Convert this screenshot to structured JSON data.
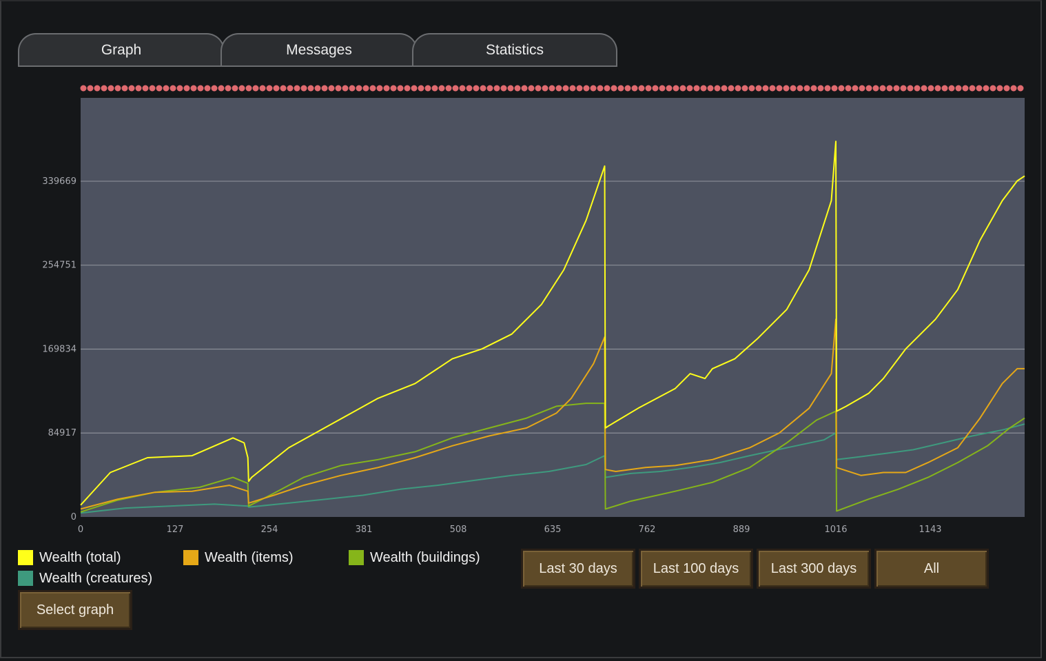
{
  "tabs": [
    {
      "label": "Graph",
      "active": true
    },
    {
      "label": "Messages",
      "active": false
    },
    {
      "label": "Statistics",
      "active": false
    }
  ],
  "legend": [
    {
      "label": "Wealth (total)",
      "color": "#ffff1a"
    },
    {
      "label": "Wealth (items)",
      "color": "#e6a817"
    },
    {
      "label": "Wealth (buildings)",
      "color": "#86b51a"
    },
    {
      "label": "Wealth (creatures)",
      "color": "#3e9a7e"
    }
  ],
  "buttons": {
    "select_graph": "Select graph",
    "last30": "Last 30 days",
    "last100": "Last 100 days",
    "last300": "Last 300 days",
    "all": "All"
  },
  "colors": {
    "plot_bg": "#4d5260",
    "gridline": "#8c8f98",
    "event_marker": "#e06a6f",
    "button_bg": "#5e4a28"
  },
  "chart_data": {
    "type": "line",
    "xlim": [
      0,
      1270
    ],
    "ylim": [
      0,
      424000
    ],
    "x_ticks": [
      0,
      127,
      254,
      381,
      508,
      635,
      762,
      889,
      1016,
      1143
    ],
    "y_ticks": [
      0,
      84917,
      169834,
      254751,
      339669
    ],
    "grid": true,
    "series": [
      {
        "name": "Wealth (total)",
        "color": "#ffff1a",
        "points": [
          [
            0,
            12000
          ],
          [
            40,
            45000
          ],
          [
            90,
            60000
          ],
          [
            150,
            62000
          ],
          [
            205,
            80000
          ],
          [
            220,
            75000
          ],
          [
            225,
            60000
          ],
          [
            226,
            36000
          ],
          [
            230,
            40000
          ],
          [
            280,
            70000
          ],
          [
            340,
            95000
          ],
          [
            400,
            120000
          ],
          [
            450,
            135000
          ],
          [
            500,
            160000
          ],
          [
            540,
            170000
          ],
          [
            580,
            185000
          ],
          [
            620,
            215000
          ],
          [
            650,
            250000
          ],
          [
            680,
            300000
          ],
          [
            705,
            355000
          ],
          [
            706,
            90000
          ],
          [
            710,
            92000
          ],
          [
            750,
            110000
          ],
          [
            800,
            130000
          ],
          [
            820,
            145000
          ],
          [
            840,
            140000
          ],
          [
            850,
            150000
          ],
          [
            880,
            160000
          ],
          [
            910,
            180000
          ],
          [
            950,
            210000
          ],
          [
            980,
            250000
          ],
          [
            1010,
            320000
          ],
          [
            1016,
            380000
          ],
          [
            1017,
            107000
          ],
          [
            1030,
            112000
          ],
          [
            1060,
            125000
          ],
          [
            1080,
            140000
          ],
          [
            1110,
            170000
          ],
          [
            1150,
            200000
          ],
          [
            1180,
            230000
          ],
          [
            1210,
            280000
          ],
          [
            1240,
            320000
          ],
          [
            1260,
            340000
          ],
          [
            1270,
            345000
          ]
        ]
      },
      {
        "name": "Wealth (items)",
        "color": "#e6a817",
        "points": [
          [
            0,
            8000
          ],
          [
            50,
            18000
          ],
          [
            100,
            25000
          ],
          [
            150,
            26000
          ],
          [
            200,
            32000
          ],
          [
            225,
            26000
          ],
          [
            226,
            14000
          ],
          [
            260,
            22000
          ],
          [
            300,
            32000
          ],
          [
            350,
            42000
          ],
          [
            400,
            50000
          ],
          [
            450,
            60000
          ],
          [
            500,
            72000
          ],
          [
            550,
            82000
          ],
          [
            600,
            90000
          ],
          [
            640,
            105000
          ],
          [
            660,
            120000
          ],
          [
            690,
            155000
          ],
          [
            705,
            182000
          ],
          [
            706,
            48000
          ],
          [
            720,
            46000
          ],
          [
            760,
            50000
          ],
          [
            800,
            52000
          ],
          [
            850,
            58000
          ],
          [
            900,
            70000
          ],
          [
            940,
            85000
          ],
          [
            980,
            110000
          ],
          [
            1010,
            145000
          ],
          [
            1016,
            200000
          ],
          [
            1017,
            50000
          ],
          [
            1050,
            42000
          ],
          [
            1080,
            45000
          ],
          [
            1110,
            45000
          ],
          [
            1140,
            55000
          ],
          [
            1180,
            70000
          ],
          [
            1210,
            100000
          ],
          [
            1240,
            135000
          ],
          [
            1260,
            150000
          ],
          [
            1270,
            150000
          ]
        ]
      },
      {
        "name": "Wealth (buildings)",
        "color": "#86b51a",
        "points": [
          [
            0,
            5000
          ],
          [
            50,
            17000
          ],
          [
            100,
            25000
          ],
          [
            160,
            30000
          ],
          [
            205,
            40000
          ],
          [
            225,
            34000
          ],
          [
            226,
            11000
          ],
          [
            260,
            24000
          ],
          [
            300,
            40000
          ],
          [
            350,
            52000
          ],
          [
            400,
            58000
          ],
          [
            450,
            66000
          ],
          [
            500,
            80000
          ],
          [
            550,
            90000
          ],
          [
            600,
            100000
          ],
          [
            640,
            112000
          ],
          [
            680,
            115000
          ],
          [
            705,
            115000
          ],
          [
            706,
            8000
          ],
          [
            740,
            16000
          ],
          [
            800,
            26000
          ],
          [
            850,
            35000
          ],
          [
            900,
            50000
          ],
          [
            950,
            75000
          ],
          [
            990,
            98000
          ],
          [
            1016,
            107000
          ],
          [
            1017,
            6000
          ],
          [
            1060,
            18000
          ],
          [
            1100,
            28000
          ],
          [
            1140,
            40000
          ],
          [
            1180,
            55000
          ],
          [
            1220,
            72000
          ],
          [
            1250,
            90000
          ],
          [
            1270,
            100000
          ]
        ]
      },
      {
        "name": "Wealth (creatures)",
        "color": "#3e9a7e",
        "points": [
          [
            0,
            4000
          ],
          [
            60,
            9000
          ],
          [
            120,
            11000
          ],
          [
            180,
            13000
          ],
          [
            225,
            11000
          ],
          [
            226,
            10000
          ],
          [
            280,
            14000
          ],
          [
            330,
            18000
          ],
          [
            380,
            22000
          ],
          [
            430,
            28000
          ],
          [
            480,
            32000
          ],
          [
            530,
            37000
          ],
          [
            580,
            42000
          ],
          [
            630,
            46000
          ],
          [
            680,
            53000
          ],
          [
            705,
            62000
          ],
          [
            706,
            40000
          ],
          [
            740,
            44000
          ],
          [
            780,
            46000
          ],
          [
            820,
            50000
          ],
          [
            860,
            55000
          ],
          [
            900,
            62000
          ],
          [
            950,
            70000
          ],
          [
            1000,
            78000
          ],
          [
            1016,
            85000
          ],
          [
            1017,
            58000
          ],
          [
            1050,
            61000
          ],
          [
            1080,
            64000
          ],
          [
            1120,
            68000
          ],
          [
            1160,
            75000
          ],
          [
            1200,
            82000
          ],
          [
            1240,
            88000
          ],
          [
            1270,
            94000
          ]
        ]
      }
    ]
  }
}
